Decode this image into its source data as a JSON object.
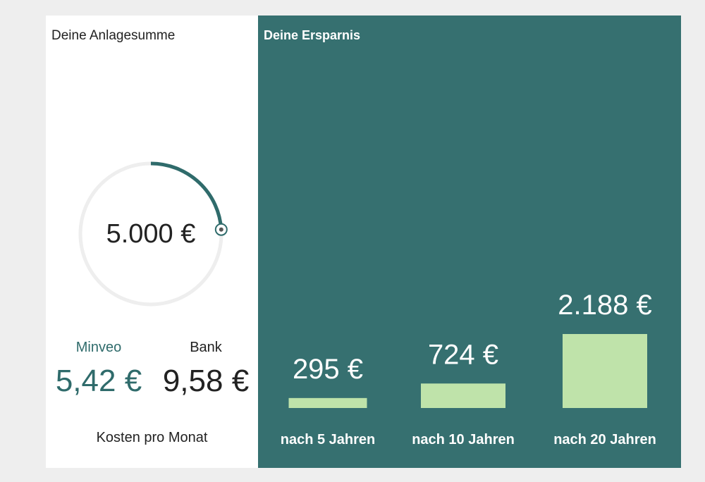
{
  "left_panel": {
    "title": "Deine Anlagesumme",
    "dial": {
      "value_label": "5.000 €",
      "fill_fraction": 0.24,
      "track_color": "#eeeeee",
      "arc_color": "#2f6b6b"
    },
    "costs": {
      "minveo": {
        "label": "Minveo",
        "value": "5,42 €",
        "color": "#2f6b6b"
      },
      "bank": {
        "label": "Bank",
        "value": "9,58 €",
        "color": "#222222"
      },
      "caption": "Kosten pro Monat"
    }
  },
  "right_panel": {
    "title": "Deine Ersparnis",
    "background": "#367070",
    "bar_color": "#bfe3aa"
  },
  "chart_data": {
    "type": "bar",
    "categories": [
      "nach 5 Jahren",
      "nach 10 Jahren",
      "nach 20 Jahren"
    ],
    "values": [
      295,
      724,
      2188
    ],
    "value_labels": [
      "295 €",
      "724 €",
      "2.188 €"
    ],
    "title": "Deine Ersparnis",
    "xlabel": "",
    "ylabel": "",
    "ylim": [
      0,
      2188
    ],
    "grid": false
  }
}
